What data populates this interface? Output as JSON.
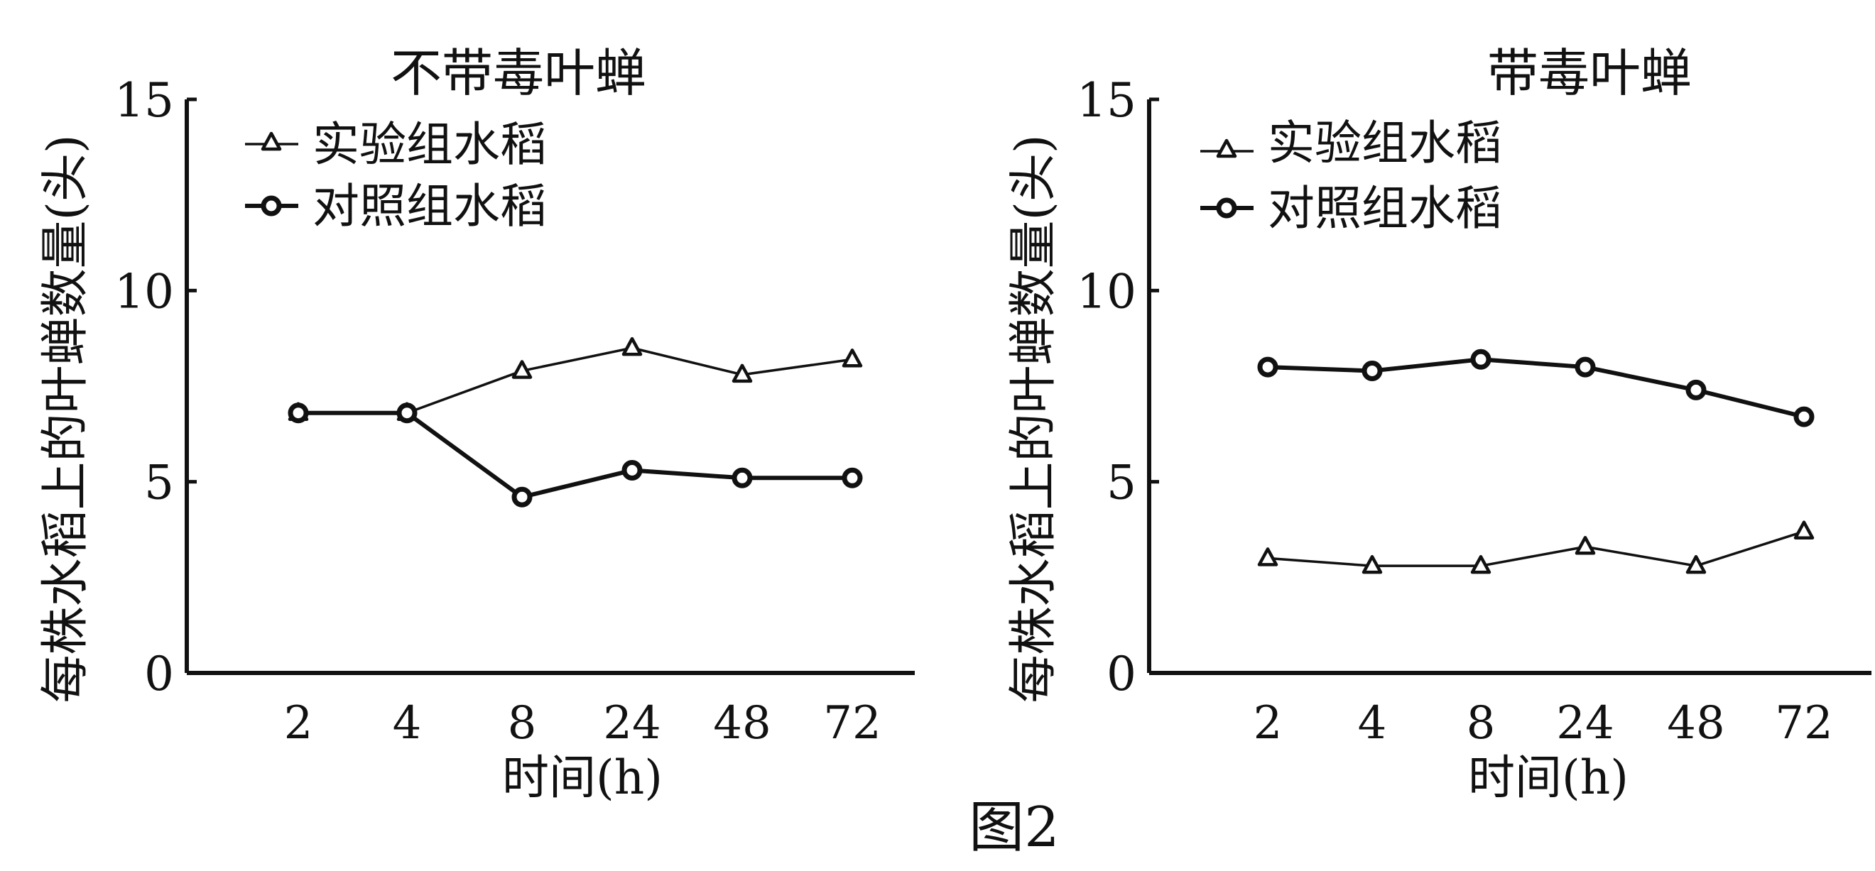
{
  "figure_label": "图2",
  "chart_data": [
    {
      "type": "line",
      "title": "不带毒叶蝉",
      "xlabel": "时间(h)",
      "ylabel": "每株水稻上的叶蝉数量(头)",
      "categories": [
        "2",
        "4",
        "8",
        "24",
        "48",
        "72"
      ],
      "ylim": [
        0,
        15
      ],
      "yticks": [
        "0",
        "5",
        "10",
        "15"
      ],
      "legend_position": "top-left",
      "series": [
        {
          "name": "实验组水稻",
          "marker": "triangle",
          "values": [
            6.8,
            6.8,
            7.9,
            8.5,
            7.8,
            8.2
          ]
        },
        {
          "name": "对照组水稻",
          "marker": "circle",
          "values": [
            6.8,
            6.8,
            4.6,
            5.3,
            5.1,
            5.1
          ]
        }
      ]
    },
    {
      "type": "line",
      "title": "带毒叶蝉",
      "xlabel": "时间(h)",
      "ylabel": "每株水稻上的叶蝉数量(头)",
      "categories": [
        "2",
        "4",
        "8",
        "24",
        "48",
        "72"
      ],
      "ylim": [
        0,
        15
      ],
      "yticks": [
        "0",
        "5",
        "10",
        "15"
      ],
      "legend_position": "top-left",
      "series": [
        {
          "name": "实验组水稻",
          "marker": "triangle",
          "values": [
            3.0,
            2.8,
            2.8,
            3.3,
            2.8,
            3.7
          ]
        },
        {
          "name": "对照组水稻",
          "marker": "circle",
          "values": [
            8.0,
            7.9,
            8.2,
            8.0,
            7.4,
            6.7
          ]
        }
      ]
    }
  ]
}
